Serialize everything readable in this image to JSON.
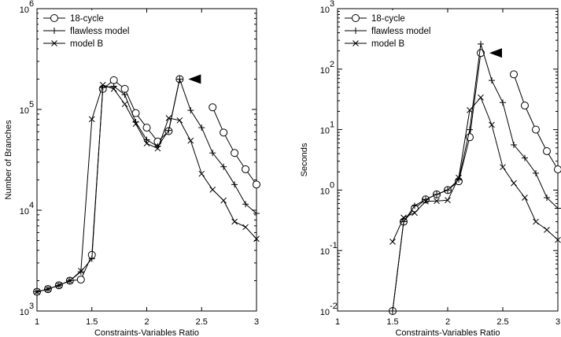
{
  "chart_data": [
    {
      "type": "line",
      "xlabel": "Constraints-Variables Ratio",
      "ylabel": "Number of Branches",
      "xlim": [
        1,
        3
      ],
      "ylim": [
        1000,
        1000000
      ],
      "yscale": "log",
      "xticks": [
        "1",
        "1.5",
        "2",
        "2.5",
        "3"
      ],
      "ytick_bases": [
        "10",
        "10",
        "10",
        "10"
      ],
      "ytick_exps": [
        "3",
        "4",
        "5",
        "6"
      ],
      "legend_position": "top-left",
      "annotation": "arrowhead marker at x=2.3",
      "series": [
        {
          "name": "18-cycle",
          "marker": "circle",
          "segments": [
            [
              [
                1.0,
                1550
              ],
              [
                1.1,
                1650
              ],
              [
                1.2,
                1800
              ],
              [
                1.3,
                2000
              ],
              [
                1.4,
                2050
              ],
              [
                1.5,
                3600
              ],
              [
                1.6,
                160000
              ],
              [
                1.7,
                195000
              ],
              [
                1.8,
                160000
              ],
              [
                1.9,
                92000
              ],
              [
                2.0,
                66000
              ],
              [
                2.1,
                48000
              ],
              [
                2.2,
                61000
              ],
              [
                2.3,
                200000
              ]
            ],
            [
              [
                2.6,
                105000
              ],
              [
                2.7,
                59000
              ],
              [
                2.8,
                37000
              ],
              [
                2.9,
                25500
              ],
              [
                3.0,
                18000
              ]
            ]
          ]
        },
        {
          "name": "flawless model",
          "marker": "plus",
          "segments": [
            [
              [
                1.0,
                1550
              ],
              [
                1.1,
                1650
              ],
              [
                1.2,
                1800
              ],
              [
                1.3,
                2000
              ],
              [
                1.4,
                2450
              ],
              [
                1.5,
                3300
              ],
              [
                1.6,
                165000
              ],
              [
                1.7,
                170000
              ],
              [
                1.8,
                140000
              ],
              [
                1.9,
                75000
              ],
              [
                2.0,
                50000
              ],
              [
                2.1,
                43000
              ],
              [
                2.2,
                62000
              ],
              [
                2.3,
                200000
              ],
              [
                2.4,
                98000
              ],
              [
                2.5,
                66000
              ],
              [
                2.6,
                37000
              ],
              [
                2.7,
                27000
              ],
              [
                2.8,
                18000
              ],
              [
                2.9,
                11500
              ],
              [
                3.0,
                9300
              ]
            ]
          ]
        },
        {
          "name": "model B",
          "marker": "x",
          "segments": [
            [
              [
                1.0,
                1550
              ],
              [
                1.1,
                1650
              ],
              [
                1.2,
                1800
              ],
              [
                1.3,
                2000
              ],
              [
                1.4,
                2500
              ],
              [
                1.5,
                80000
              ],
              [
                1.6,
                175000
              ],
              [
                1.7,
                160000
              ],
              [
                1.8,
                113000
              ],
              [
                1.9,
                72000
              ],
              [
                2.0,
                46000
              ],
              [
                2.1,
                41000
              ],
              [
                2.2,
                82000
              ],
              [
                2.3,
                78000
              ],
              [
                2.4,
                49000
              ],
              [
                2.5,
                23000
              ],
              [
                2.6,
                16000
              ],
              [
                2.7,
                12500
              ],
              [
                2.8,
                7700
              ],
              [
                2.9,
                6800
              ],
              [
                3.0,
                5200
              ]
            ]
          ]
        }
      ]
    },
    {
      "type": "line",
      "xlabel": "Constraints-Variables Ratio",
      "ylabel": "Seconds",
      "xlim": [
        1,
        3
      ],
      "ylim": [
        0.01,
        1000
      ],
      "yscale": "log",
      "xticks": [
        "1",
        "1.5",
        "2",
        "2.5",
        "3"
      ],
      "ytick_bases": [
        "10",
        "10",
        "10",
        "10",
        "10",
        "10"
      ],
      "ytick_exps": [
        "-2",
        "-1",
        "0",
        "1",
        "2",
        "3"
      ],
      "legend_position": "top-left",
      "annotation": "arrowhead marker at x=2.3",
      "series": [
        {
          "name": "18-cycle",
          "marker": "circle",
          "segments": [
            [
              [
                1.5,
                0.01
              ],
              [
                1.6,
                0.3
              ],
              [
                1.7,
                0.5
              ],
              [
                1.8,
                0.7
              ],
              [
                1.9,
                0.85
              ],
              [
                2.0,
                1.0
              ],
              [
                2.1,
                1.4
              ],
              [
                2.2,
                7.5
              ],
              [
                2.3,
                185
              ]
            ],
            [
              [
                2.6,
                82
              ],
              [
                2.7,
                25
              ],
              [
                2.8,
                10
              ],
              [
                2.9,
                4.4
              ],
              [
                3.0,
                2.2
              ]
            ]
          ]
        },
        {
          "name": "flawless model",
          "marker": "plus",
          "segments": [
            [
              [
                1.5,
                0.01
              ],
              [
                1.6,
                0.3
              ],
              [
                1.7,
                0.55
              ],
              [
                1.8,
                0.7
              ],
              [
                1.9,
                0.85
              ],
              [
                2.0,
                1.0
              ],
              [
                2.1,
                1.5
              ],
              [
                2.2,
                10
              ],
              [
                2.3,
                260
              ],
              [
                2.4,
                65
              ],
              [
                2.5,
                28
              ],
              [
                2.6,
                5.6
              ],
              [
                2.7,
                3.4
              ],
              [
                2.8,
                1.9
              ],
              [
                2.9,
                0.75
              ],
              [
                3.0,
                0.5
              ]
            ]
          ]
        },
        {
          "name": "model B",
          "marker": "x",
          "segments": [
            [
              [
                1.5,
                0.14
              ],
              [
                1.6,
                0.35
              ],
              [
                1.7,
                0.42
              ],
              [
                1.8,
                0.65
              ],
              [
                1.9,
                0.66
              ],
              [
                2.0,
                0.68
              ],
              [
                2.1,
                1.6
              ],
              [
                2.2,
                21
              ],
              [
                2.3,
                34
              ],
              [
                2.4,
                12
              ],
              [
                2.5,
                2.4
              ],
              [
                2.6,
                1.3
              ],
              [
                2.7,
                0.75
              ],
              [
                2.8,
                0.3
              ],
              [
                2.9,
                0.22
              ],
              [
                3.0,
                0.15
              ]
            ]
          ]
        }
      ]
    }
  ]
}
